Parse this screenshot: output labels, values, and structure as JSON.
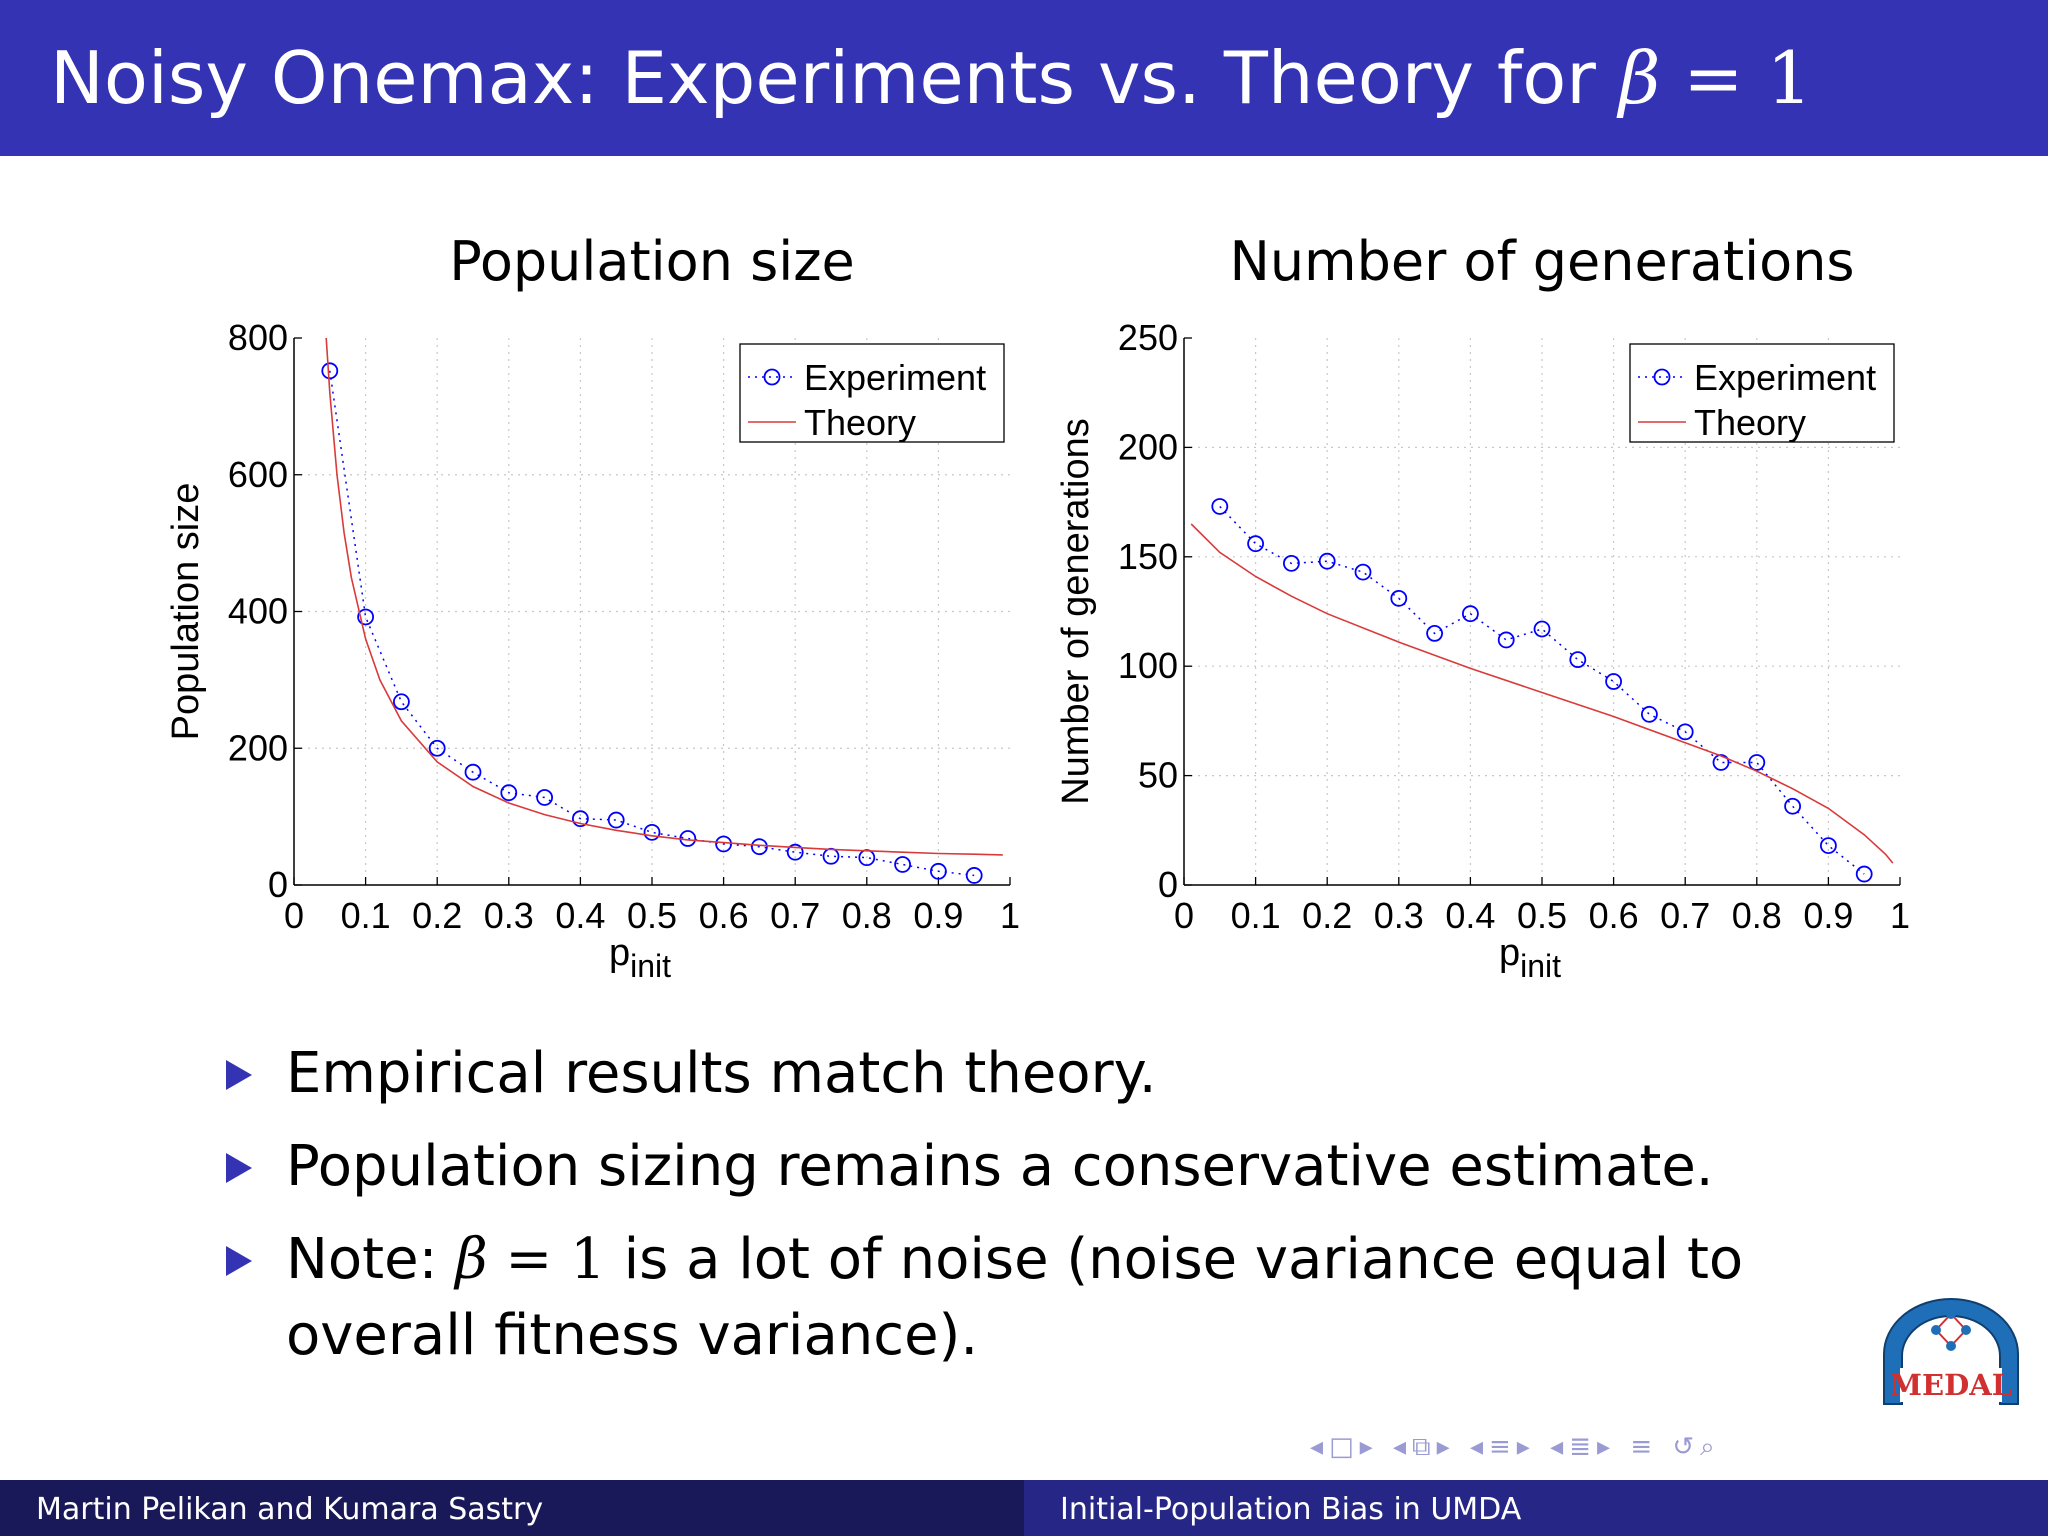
{
  "slide": {
    "title_text": "Noisy Onemax: Experiments vs. Theory for",
    "title_math_var": "β",
    "title_math_rest": " = 1"
  },
  "bullets": [
    {
      "text": "Empirical results match theory."
    },
    {
      "text": "Population sizing remains a conservative estimate."
    },
    {
      "prefix": "Note: ",
      "math_var": "β",
      "math_rest": " = 1",
      "suffix": " is a lot of noise (noise variance equal to overall fitness variance)."
    }
  ],
  "footer": {
    "authors": "Martin Pelikan and Kumara Sastry",
    "talk_title": "Initial-Population Bias in UMDA"
  },
  "logo": {
    "text": "MEDAL"
  },
  "nav": {
    "icons": [
      "nav-prev-frame-icon",
      "nav-frame-icon",
      "nav-next-frame-icon",
      "nav-prev-subsection-icon",
      "nav-subsection-icon",
      "nav-next-subsection-icon",
      "nav-prev-section-icon",
      "nav-section-icon",
      "nav-next-section-icon",
      "nav-prev-slide-icon",
      "nav-slide-icon",
      "nav-next-slide-icon",
      "nav-align-icon",
      "nav-back-icon",
      "nav-search-icon"
    ]
  },
  "colors": {
    "header": "#3333b3",
    "footer_left": "#191959",
    "footer_right": "#262686",
    "experiment": "#0000ff",
    "theory": "#d93a3a"
  },
  "chart_data": [
    {
      "type": "line",
      "title": "Population size",
      "xlabel": "p",
      "xlabel_sub": "init",
      "ylabel": "Population size",
      "xlim": [
        0,
        1
      ],
      "ylim": [
        0,
        800
      ],
      "xticks": [
        0,
        0.1,
        0.2,
        0.3,
        0.4,
        0.5,
        0.6,
        0.7,
        0.8,
        0.9,
        1
      ],
      "yticks": [
        0,
        200,
        400,
        600,
        800
      ],
      "grid": true,
      "legend": "top-right",
      "series": [
        {
          "name": "Experiment",
          "style": "markers-dotted",
          "x": [
            0.05,
            0.1,
            0.15,
            0.2,
            0.25,
            0.3,
            0.35,
            0.4,
            0.45,
            0.5,
            0.55,
            0.6,
            0.65,
            0.7,
            0.75,
            0.8,
            0.85,
            0.9,
            0.95
          ],
          "y": [
            752,
            392,
            268,
            200,
            165,
            135,
            128,
            97,
            95,
            77,
            68,
            60,
            56,
            48,
            42,
            40,
            30,
            20,
            14
          ]
        },
        {
          "name": "Theory",
          "style": "solid",
          "x": [
            0.045,
            0.05,
            0.06,
            0.07,
            0.08,
            0.1,
            0.12,
            0.15,
            0.2,
            0.25,
            0.3,
            0.35,
            0.4,
            0.45,
            0.5,
            0.55,
            0.6,
            0.65,
            0.7,
            0.75,
            0.8,
            0.85,
            0.9,
            0.95,
            0.99
          ],
          "y": [
            800,
            720,
            600,
            515,
            450,
            360,
            300,
            240,
            180,
            144,
            120,
            103,
            90,
            80,
            72,
            66,
            62,
            58,
            55,
            52,
            50,
            48,
            46,
            45,
            44
          ]
        }
      ]
    },
    {
      "type": "line",
      "title": "Number of generations",
      "xlabel": "p",
      "xlabel_sub": "init",
      "ylabel": "Number of generations",
      "xlim": [
        0,
        1
      ],
      "ylim": [
        0,
        250
      ],
      "xticks": [
        0,
        0.1,
        0.2,
        0.3,
        0.4,
        0.5,
        0.6,
        0.7,
        0.8,
        0.9,
        1
      ],
      "yticks": [
        0,
        50,
        100,
        150,
        200,
        250
      ],
      "grid": true,
      "legend": "top-right",
      "series": [
        {
          "name": "Experiment",
          "style": "markers-dotted",
          "x": [
            0.05,
            0.1,
            0.15,
            0.2,
            0.25,
            0.3,
            0.35,
            0.4,
            0.45,
            0.5,
            0.55,
            0.6,
            0.65,
            0.7,
            0.75,
            0.8,
            0.85,
            0.9,
            0.95
          ],
          "y": [
            173,
            156,
            147,
            148,
            143,
            131,
            115,
            124,
            112,
            117,
            103,
            93,
            78,
            70,
            56,
            56,
            36,
            18,
            5
          ]
        },
        {
          "name": "Theory",
          "style": "solid",
          "x": [
            0.01,
            0.05,
            0.1,
            0.15,
            0.2,
            0.3,
            0.4,
            0.5,
            0.6,
            0.7,
            0.75,
            0.8,
            0.85,
            0.9,
            0.95,
            0.98,
            0.99
          ],
          "y": [
            165,
            152,
            141,
            132,
            124,
            111,
            99,
            88,
            77,
            65,
            59,
            52,
            44,
            35,
            23,
            14,
            10
          ]
        }
      ]
    }
  ]
}
